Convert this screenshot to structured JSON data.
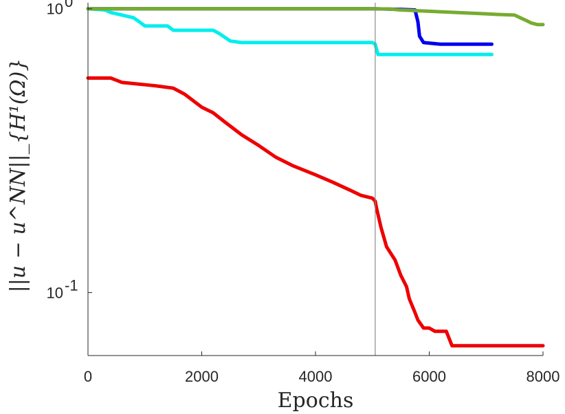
{
  "chart_data": {
    "type": "line",
    "title": "",
    "xlabel": "Epochs",
    "ylabel": "||u − u^NN||_{H¹(Ω)}",
    "xlim": [
      0,
      8000
    ],
    "ylim": [
      0.06,
      1.05
    ],
    "yscale": "log",
    "grid": false,
    "x_ticks": [
      0,
      2000,
      4000,
      6000,
      8000
    ],
    "x_tick_labels": [
      "0",
      "2000",
      "4000",
      "6000",
      "8000"
    ],
    "y_ticks": [
      {
        "value": 1,
        "base": "10",
        "exp": "0"
      },
      {
        "value": 0.1,
        "base": "10",
        "exp": "-1"
      }
    ],
    "vertical_line_x": 5050,
    "series": [
      {
        "color": "#0000ee",
        "x": [
          0,
          5000,
          5100,
          5500,
          5750,
          5800,
          5830,
          5900,
          6200,
          7100
        ],
        "y": [
          1.0,
          1.0,
          0.999,
          0.995,
          0.99,
          0.9,
          0.8,
          0.76,
          0.75,
          0.75
        ]
      },
      {
        "color": "#00eeee",
        "x": [
          0,
          300,
          400,
          500,
          600,
          800,
          900,
          1000,
          1100,
          1400,
          1500,
          2200,
          2300,
          2500,
          2700,
          3000,
          5000,
          5050,
          5100,
          6000,
          7100
        ],
        "y": [
          1.0,
          0.99,
          0.97,
          0.96,
          0.95,
          0.93,
          0.9,
          0.87,
          0.87,
          0.87,
          0.84,
          0.84,
          0.82,
          0.77,
          0.76,
          0.76,
          0.76,
          0.75,
          0.69,
          0.69,
          0.69
        ]
      },
      {
        "color": "#ee0000",
        "x": [
          0,
          400,
          500,
          600,
          800,
          1000,
          1200,
          1500,
          1700,
          2000,
          2200,
          2400,
          2700,
          3000,
          3300,
          3600,
          4000,
          4300,
          4600,
          4800,
          5000,
          5050,
          5070,
          5150,
          5250,
          5400,
          5500,
          5600,
          5650,
          5750,
          5800,
          5900,
          6000,
          6100,
          6200,
          6300,
          6400,
          6500,
          7000,
          8000
        ],
        "y": [
          0.57,
          0.57,
          0.56,
          0.55,
          0.545,
          0.54,
          0.535,
          0.525,
          0.5,
          0.45,
          0.43,
          0.4,
          0.36,
          0.33,
          0.3,
          0.28,
          0.26,
          0.245,
          0.23,
          0.22,
          0.215,
          0.21,
          0.2,
          0.17,
          0.145,
          0.13,
          0.115,
          0.105,
          0.095,
          0.085,
          0.08,
          0.075,
          0.075,
          0.073,
          0.073,
          0.073,
          0.065,
          0.065,
          0.065,
          0.065
        ]
      },
      {
        "color": "#77ac30",
        "x": [
          0,
          1000,
          3000,
          5000,
          5300,
          5500,
          6000,
          6500,
          7000,
          7200,
          7500,
          7600,
          7700,
          7800,
          7900,
          8000
        ],
        "y": [
          1.0,
          1.0,
          1.0,
          1.0,
          0.998,
          0.99,
          0.98,
          0.97,
          0.96,
          0.955,
          0.95,
          0.93,
          0.91,
          0.89,
          0.88,
          0.88
        ]
      }
    ]
  }
}
